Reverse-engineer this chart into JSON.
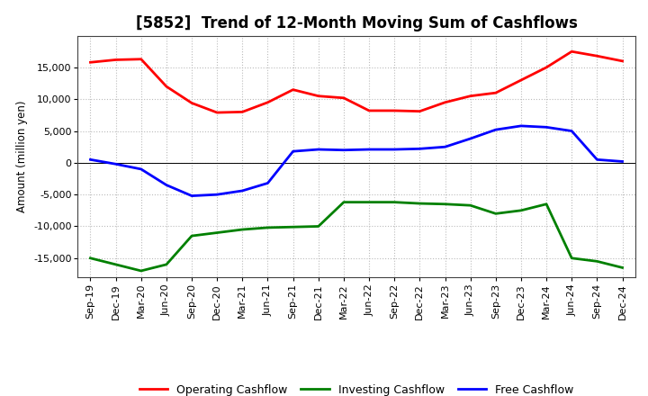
{
  "title": "[5852]  Trend of 12-Month Moving Sum of Cashflows",
  "ylabel": "Amount (million yen)",
  "background_color": "#ffffff",
  "grid_color": "#bbbbbb",
  "x_labels": [
    "Sep-19",
    "Dec-19",
    "Mar-20",
    "Jun-20",
    "Sep-20",
    "Dec-20",
    "Mar-21",
    "Jun-21",
    "Sep-21",
    "Dec-21",
    "Mar-22",
    "Jun-22",
    "Sep-22",
    "Dec-22",
    "Mar-23",
    "Jun-23",
    "Sep-23",
    "Dec-23",
    "Mar-24",
    "Jun-24",
    "Sep-24",
    "Dec-24"
  ],
  "operating": [
    15800,
    16200,
    16300,
    12000,
    9400,
    7900,
    8000,
    9500,
    11500,
    10500,
    10200,
    8200,
    8200,
    8100,
    9500,
    10500,
    11000,
    13000,
    15000,
    17500,
    16800,
    16000
  ],
  "investing": [
    -15000,
    -16000,
    -17000,
    -16000,
    -11500,
    -11000,
    -10500,
    -10200,
    -10100,
    -10000,
    -6200,
    -6200,
    -6200,
    -6400,
    -6500,
    -6700,
    -8000,
    -7500,
    -6500,
    -15000,
    -15500,
    -16500
  ],
  "free": [
    500,
    -200,
    -1000,
    -3500,
    -5200,
    -5000,
    -4400,
    -3200,
    1800,
    2100,
    2000,
    2100,
    2100,
    2200,
    2500,
    3800,
    5200,
    5800,
    5600,
    5000,
    500,
    200
  ],
  "operating_color": "#ff0000",
  "investing_color": "#008000",
  "free_color": "#0000ff",
  "ylim": [
    -18000,
    20000
  ],
  "yticks": [
    -15000,
    -10000,
    -5000,
    0,
    5000,
    10000,
    15000
  ],
  "line_width": 2.0,
  "title_fontsize": 12,
  "label_fontsize": 8.5,
  "tick_fontsize": 8,
  "legend_fontsize": 9
}
